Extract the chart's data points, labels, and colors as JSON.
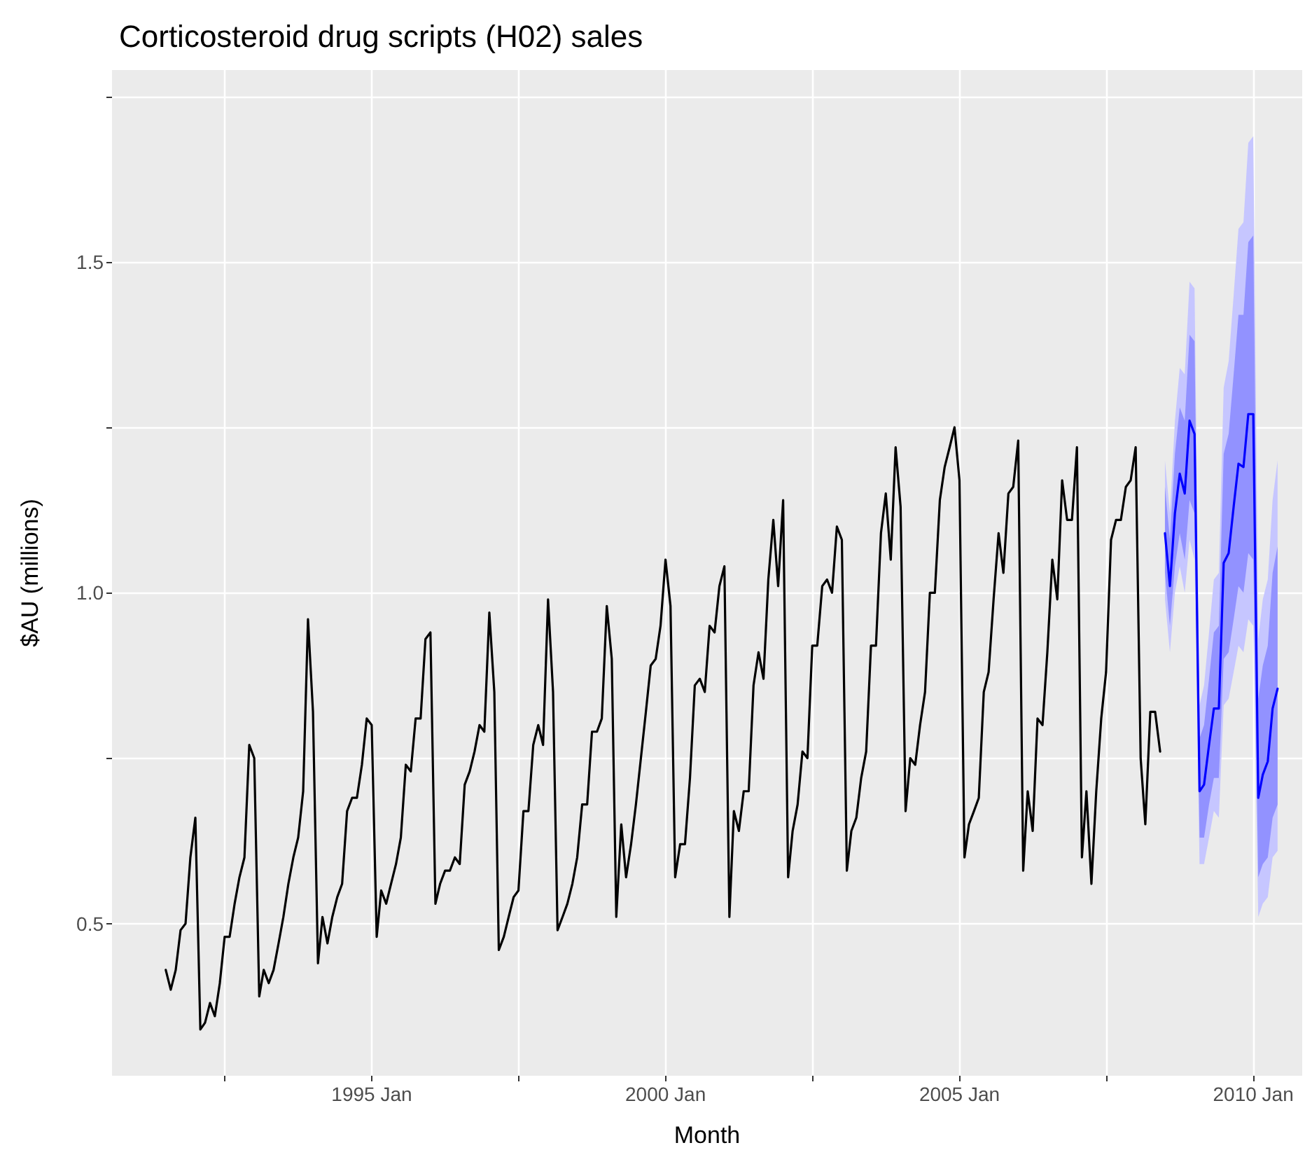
{
  "chart_data": {
    "type": "line",
    "title": "Corticosteroid drug scripts (H02) sales",
    "xlabel": "Month",
    "ylabel": "$AU (millions)",
    "xlim": [
      "1990-08",
      "2010-11"
    ],
    "xticks": [
      {
        "value": "1992-07",
        "label": null
      },
      {
        "value": "1995-01",
        "label": "1995 Jan"
      },
      {
        "value": "1997-07",
        "label": null
      },
      {
        "value": "2000-01",
        "label": "2000 Jan"
      },
      {
        "value": "2002-07",
        "label": null
      },
      {
        "value": "2005-01",
        "label": "2005 Jan"
      },
      {
        "value": "2007-07",
        "label": null
      },
      {
        "value": "2010-01",
        "label": "2010 Jan"
      }
    ],
    "ylim": [
      0.27,
      1.79
    ],
    "yticks": [
      {
        "value": 0.5,
        "label": "0.5"
      },
      {
        "value": 0.75,
        "label": null
      },
      {
        "value": 1,
        "label": "1.0"
      },
      {
        "value": 1.25,
        "label": null
      },
      {
        "value": 1.5,
        "label": "1.5"
      },
      {
        "value": 1.75,
        "label": null
      }
    ],
    "grid": true,
    "series": [
      {
        "color": "#000000",
        "x": [
          "1991-07",
          "1991-08",
          "1991-09",
          "1991-10",
          "1991-11",
          "1991-12",
          "1992-01",
          "1992-02",
          "1992-03",
          "1992-04",
          "1992-05",
          "1992-06",
          "1992-07",
          "1992-08",
          "1992-09",
          "1992-10",
          "1992-11",
          "1992-12",
          "1993-01",
          "1993-02",
          "1993-03",
          "1993-04",
          "1993-05",
          "1993-06",
          "1993-07",
          "1993-08",
          "1993-09",
          "1993-10",
          "1993-11",
          "1993-12",
          "1994-01",
          "1994-02",
          "1994-03",
          "1994-04",
          "1994-05",
          "1994-06",
          "1994-07",
          "1994-08",
          "1994-09",
          "1994-10",
          "1994-11",
          "1994-12",
          "1995-01",
          "1995-02",
          "1995-03",
          "1995-04",
          "1995-05",
          "1995-06",
          "1995-07",
          "1995-08",
          "1995-09",
          "1995-10",
          "1995-11",
          "1995-12",
          "1996-01",
          "1996-02",
          "1996-03",
          "1996-04",
          "1996-05",
          "1996-06",
          "1996-07",
          "1996-08",
          "1996-09",
          "1996-10",
          "1996-11",
          "1996-12",
          "1997-01",
          "1997-02",
          "1997-03",
          "1997-04",
          "1997-05",
          "1997-06",
          "1997-07",
          "1997-08",
          "1997-09",
          "1997-10",
          "1997-11",
          "1997-12",
          "1998-01",
          "1998-02",
          "1998-03",
          "1998-04",
          "1998-05",
          "1998-06",
          "1998-07",
          "1998-08",
          "1998-09",
          "1998-10",
          "1998-11",
          "1998-12",
          "1999-01",
          "1999-02",
          "1999-03",
          "1999-04",
          "1999-05",
          "1999-06",
          "1999-07",
          "1999-08",
          "1999-09",
          "1999-10",
          "1999-11",
          "1999-12",
          "2000-01",
          "2000-02",
          "2000-03",
          "2000-04",
          "2000-05",
          "2000-06",
          "2000-07",
          "2000-08",
          "2000-09",
          "2000-10",
          "2000-11",
          "2000-12",
          "2001-01",
          "2001-02",
          "2001-03",
          "2001-04",
          "2001-05",
          "2001-06",
          "2001-07",
          "2001-08",
          "2001-09",
          "2001-10",
          "2001-11",
          "2001-12",
          "2002-01",
          "2002-02",
          "2002-03",
          "2002-04",
          "2002-05",
          "2002-06",
          "2002-07",
          "2002-08",
          "2002-09",
          "2002-10",
          "2002-11",
          "2002-12",
          "2003-01",
          "2003-02",
          "2003-03",
          "2003-04",
          "2003-05",
          "2003-06",
          "2003-07",
          "2003-08",
          "2003-09",
          "2003-10",
          "2003-11",
          "2003-12",
          "2004-01",
          "2004-02",
          "2004-03",
          "2004-04",
          "2004-05",
          "2004-06",
          "2004-07",
          "2004-08",
          "2004-09",
          "2004-10",
          "2004-11",
          "2004-12",
          "2005-01",
          "2005-02",
          "2005-03",
          "2005-04",
          "2005-05",
          "2005-06",
          "2005-07",
          "2005-08",
          "2005-09",
          "2005-10",
          "2005-11",
          "2005-12",
          "2006-01",
          "2006-02",
          "2006-03",
          "2006-04",
          "2006-05",
          "2006-06",
          "2006-07",
          "2006-08",
          "2006-09",
          "2006-10",
          "2006-11",
          "2006-12",
          "2007-01",
          "2007-02",
          "2007-03",
          "2007-04",
          "2007-05",
          "2007-06",
          "2007-07",
          "2007-08",
          "2007-09",
          "2007-10",
          "2007-11",
          "2007-12",
          "2008-01",
          "2008-02",
          "2008-03",
          "2008-04",
          "2008-05",
          "2008-06"
        ],
        "values": [
          0.43,
          0.4,
          0.43,
          0.49,
          0.5,
          0.6,
          0.66,
          0.34,
          0.35,
          0.38,
          0.36,
          0.41,
          0.48,
          0.48,
          0.53,
          0.57,
          0.6,
          0.77,
          0.75,
          0.39,
          0.43,
          0.41,
          0.43,
          0.47,
          0.51,
          0.56,
          0.6,
          0.63,
          0.7,
          0.96,
          0.82,
          0.44,
          0.51,
          0.47,
          0.51,
          0.54,
          0.56,
          0.67,
          0.69,
          0.69,
          0.74,
          0.81,
          0.8,
          0.48,
          0.55,
          0.53,
          0.56,
          0.59,
          0.63,
          0.74,
          0.73,
          0.81,
          0.81,
          0.93,
          0.94,
          0.53,
          0.56,
          0.58,
          0.58,
          0.6,
          0.59,
          0.71,
          0.73,
          0.76,
          0.8,
          0.79,
          0.97,
          0.85,
          0.46,
          0.48,
          0.51,
          0.54,
          0.55,
          0.67,
          0.67,
          0.77,
          0.8,
          0.77,
          0.99,
          0.85,
          0.49,
          0.51,
          0.53,
          0.56,
          0.6,
          0.68,
          0.68,
          0.79,
          0.79,
          0.81,
          0.98,
          0.9,
          0.51,
          0.65,
          0.57,
          0.62,
          0.68,
          0.75,
          0.82,
          0.89,
          0.9,
          0.95,
          1.05,
          0.98,
          0.57,
          0.62,
          0.62,
          0.72,
          0.86,
          0.87,
          0.85,
          0.95,
          0.94,
          1.01,
          1.04,
          0.51,
          0.67,
          0.64,
          0.7,
          0.7,
          0.86,
          0.91,
          0.87,
          1.02,
          1.11,
          1.01,
          1.14,
          0.57,
          0.64,
          0.68,
          0.76,
          0.75,
          0.92,
          0.92,
          1.01,
          1.02,
          1.0,
          1.1,
          1.08,
          0.58,
          0.64,
          0.66,
          0.72,
          0.76,
          0.92,
          0.92,
          1.09,
          1.15,
          1.05,
          1.22,
          1.13,
          0.67,
          0.75,
          0.74,
          0.8,
          0.85,
          1.0,
          1.0,
          1.14,
          1.19,
          1.22,
          1.25,
          1.17,
          0.6,
          0.65,
          0.67,
          0.69,
          0.85,
          0.88,
          0.99,
          1.09,
          1.03,
          1.15,
          1.16,
          1.23,
          0.58,
          0.7,
          0.64,
          0.81,
          0.8,
          0.91,
          1.05,
          0.99,
          1.17,
          1.11,
          1.11,
          1.22,
          0.6,
          0.7,
          0.56,
          0.7,
          0.81,
          0.88,
          1.08,
          1.11,
          1.11,
          1.16,
          1.17,
          1.22,
          0.75,
          0.65,
          0.82,
          0.82,
          0.76
        ]
      },
      {
        "color": "#c6c6ff",
        "values": [
          null,
          null,
          null,
          null,
          null,
          null,
          null,
          null,
          null,
          null,
          null,
          null,
          null,
          null,
          null,
          null,
          null,
          null,
          null,
          null,
          null,
          null,
          null,
          null
        ],
        "x": [
          "2008-07",
          "2008-08",
          "2008-09",
          "2008-10",
          "2008-11",
          "2008-12",
          "2009-01",
          "2009-02",
          "2009-03",
          "2009-04",
          "2009-05",
          "2009-06",
          "2009-07",
          "2009-08",
          "2009-09",
          "2009-10",
          "2009-11",
          "2009-12",
          "2010-01",
          "2010-02",
          "2010-03",
          "2010-04",
          "2010-05",
          "2010-06"
        ],
        "lower": [
          0.99,
          0.91,
          1.0,
          1.04,
          1.0,
          1.08,
          1.05,
          0.59,
          0.59,
          0.63,
          0.67,
          0.66,
          0.83,
          0.84,
          0.88,
          0.92,
          0.91,
          0.96,
          0.95,
          0.51,
          0.53,
          0.54,
          0.6,
          0.61
        ],
        "upper": [
          1.2,
          1.12,
          1.26,
          1.34,
          1.33,
          1.47,
          1.46,
          0.83,
          0.86,
          0.94,
          1.02,
          1.03,
          1.31,
          1.35,
          1.45,
          1.55,
          1.56,
          1.68,
          1.69,
          0.93,
          0.99,
          1.02,
          1.14,
          1.2
        ]
      },
      {
        "color": "#9292ff",
        "values": [
          null,
          null,
          null,
          null,
          null,
          null,
          null,
          null,
          null,
          null,
          null,
          null,
          null,
          null,
          null,
          null,
          null,
          null,
          null,
          null,
          null,
          null,
          null,
          null
        ],
        "x": [
          "2008-07",
          "2008-08",
          "2008-09",
          "2008-10",
          "2008-11",
          "2008-12",
          "2009-01",
          "2009-02",
          "2009-03",
          "2009-04",
          "2009-05",
          "2009-06",
          "2009-07",
          "2009-08",
          "2009-09",
          "2009-10",
          "2009-11",
          "2009-12",
          "2010-01",
          "2010-02",
          "2010-03",
          "2010-04",
          "2010-05",
          "2010-06"
        ],
        "lower": [
          1.03,
          0.95,
          1.04,
          1.09,
          1.05,
          1.14,
          1.12,
          0.63,
          0.63,
          0.68,
          0.72,
          0.72,
          0.9,
          0.91,
          0.96,
          1.01,
          1.0,
          1.06,
          1.05,
          0.57,
          0.59,
          0.6,
          0.66,
          0.68
        ],
        "upper": [
          1.16,
          1.08,
          1.21,
          1.28,
          1.26,
          1.39,
          1.38,
          0.78,
          0.8,
          0.87,
          0.94,
          0.95,
          1.21,
          1.24,
          1.33,
          1.42,
          1.42,
          1.53,
          1.54,
          0.84,
          0.89,
          0.92,
          1.03,
          1.07
        ]
      },
      {
        "color": "#0000ff",
        "x": [
          "2008-07",
          "2008-08",
          "2008-09",
          "2008-10",
          "2008-11",
          "2008-12",
          "2009-01",
          "2009-02",
          "2009-03",
          "2009-04",
          "2009-05",
          "2009-06",
          "2009-07",
          "2009-08",
          "2009-09",
          "2009-10",
          "2009-11",
          "2009-12",
          "2010-01",
          "2010-02",
          "2010-03",
          "2010-04",
          "2010-05",
          "2010-06"
        ],
        "values": [
          1.09,
          1.01,
          1.12,
          1.18,
          1.15,
          1.26,
          1.24,
          0.7,
          0.71,
          0.77,
          0.825,
          0.825,
          1.045,
          1.06,
          1.13,
          1.195,
          1.19,
          1.27,
          1.27,
          0.69,
          0.725,
          0.745,
          0.825,
          0.855
        ]
      }
    ]
  }
}
